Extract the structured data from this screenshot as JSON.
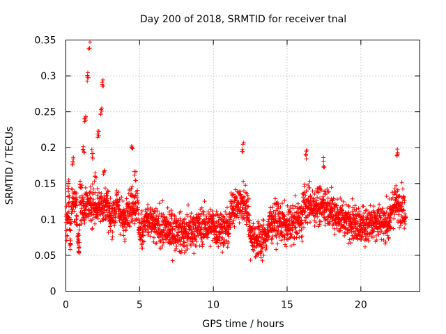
{
  "chart_data": {
    "type": "scatter",
    "title": "Day 200 of 2018, SRMTID for receiver tnal",
    "xlabel": "GPS time / hours",
    "ylabel": "SRMTID / TECUs",
    "xlim": [
      0,
      24
    ],
    "ylim": [
      0,
      0.35
    ],
    "x_ticks": [
      0,
      5,
      10,
      15,
      20
    ],
    "x_tick_labels": [
      "0",
      "5",
      "10",
      "15",
      "20"
    ],
    "y_ticks": [
      0,
      0.05,
      0.1,
      0.15,
      0.2,
      0.25,
      0.3,
      0.35
    ],
    "y_tick_labels": [
      "0",
      "0.05",
      "0.1",
      "0.15",
      "0.2",
      "0.25",
      "0.3",
      "0.35"
    ],
    "grid": true,
    "marker": "plus",
    "marker_color": "#ff0000",
    "x_data_extent": [
      0,
      23
    ],
    "series": [
      {
        "name": "SRMTID",
        "description_points": [
          [
            0.1,
            0.1
          ],
          [
            0.2,
            0.15
          ],
          [
            0.3,
            0.07
          ],
          [
            0.5,
            0.18
          ],
          [
            0.7,
            0.12
          ],
          [
            0.9,
            0.06
          ],
          [
            1.0,
            0.15
          ],
          [
            1.2,
            0.2
          ],
          [
            1.3,
            0.24
          ],
          [
            1.5,
            0.3
          ],
          [
            1.6,
            0.345
          ],
          [
            1.8,
            0.19
          ],
          [
            2.0,
            0.16
          ],
          [
            2.2,
            0.22
          ],
          [
            2.4,
            0.25
          ],
          [
            2.5,
            0.29
          ],
          [
            2.6,
            0.17
          ],
          [
            2.8,
            0.13
          ],
          [
            3.0,
            0.1
          ],
          [
            3.5,
            0.12
          ],
          [
            4.0,
            0.09
          ],
          [
            4.5,
            0.2
          ],
          [
            4.7,
            0.16
          ],
          [
            5.0,
            0.08
          ],
          [
            5.5,
            0.1
          ],
          [
            6.0,
            0.09
          ],
          [
            7.0,
            0.085
          ],
          [
            8.0,
            0.08
          ],
          [
            9.0,
            0.09
          ],
          [
            10.0,
            0.09
          ],
          [
            11.0,
            0.085
          ],
          [
            12.0,
            0.2
          ],
          [
            12.5,
            0.08
          ],
          [
            13.0,
            0.07
          ],
          [
            13.5,
            0.075
          ],
          [
            14.0,
            0.1
          ],
          [
            15.0,
            0.09
          ],
          [
            16.0,
            0.1
          ],
          [
            16.3,
            0.19
          ],
          [
            17.0,
            0.12
          ],
          [
            17.5,
            0.18
          ],
          [
            18.0,
            0.11
          ],
          [
            19.0,
            0.1
          ],
          [
            20.0,
            0.09
          ],
          [
            21.0,
            0.1
          ],
          [
            22.0,
            0.095
          ],
          [
            22.5,
            0.195
          ],
          [
            23.0,
            0.1
          ]
        ]
      }
    ]
  }
}
